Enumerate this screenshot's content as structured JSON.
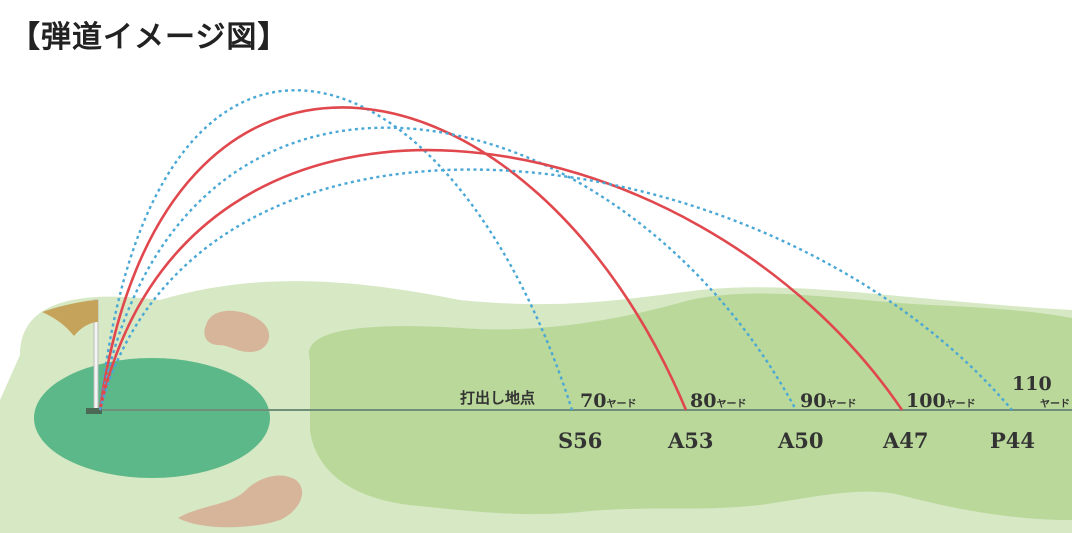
{
  "title": "【弾道イメージ図】",
  "launch_label": "打出し地点",
  "yard_unit": "ヤード",
  "colors": {
    "red_trajectory": "#e0484e",
    "blue_trajectory": "#4aa8d6",
    "fairway_light": "#d6e8c4",
    "fairway_mid": "#b9d89a",
    "green": "#5cb889",
    "bunker": "#d6b59a",
    "flag": "#c6a35a",
    "ground_line": "#6f8f78"
  },
  "shots": [
    {
      "club": "S56",
      "distance": "70",
      "style": "dotted-blue",
      "arc": "high"
    },
    {
      "club": "A53",
      "distance": "80",
      "style": "solid-red",
      "arc": "high"
    },
    {
      "club": "A50",
      "distance": "90",
      "style": "dotted-blue",
      "arc": "mid"
    },
    {
      "club": "A47",
      "distance": "100",
      "style": "solid-red",
      "arc": "mid"
    },
    {
      "club": "P44",
      "distance": "110",
      "style": "dotted-blue",
      "arc": "low"
    }
  ]
}
